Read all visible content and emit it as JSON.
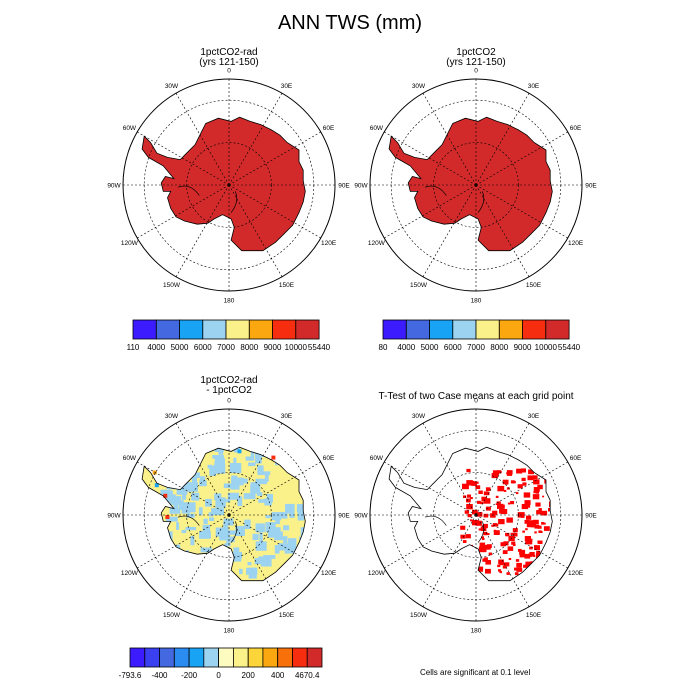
{
  "title": "ANN TWS (mm)",
  "panels": [
    {
      "title_line1": "1pctCO2-rad",
      "title_line2": "(yrs 121-150)",
      "fill": "field-red"
    },
    {
      "title_line1": "1pctCO2",
      "title_line2": "(yrs 121-150)",
      "fill": "field-red"
    },
    {
      "title_line1": "1pctCO2-rad",
      "title_line2": "- 1pctCO2",
      "fill": "diff"
    },
    {
      "title_line1": "T-Test of two Case means at each grid point",
      "title_line2": "",
      "fill": "ttest"
    }
  ],
  "longitude_labels": [
    "0",
    "30E",
    "60E",
    "90E",
    "120E",
    "150E",
    "180",
    "150W",
    "120W",
    "90W",
    "60W",
    "30W"
  ],
  "colorbars": [
    {
      "labels": [
        "110",
        "4000",
        "5000",
        "6000",
        "7000",
        "8000",
        "9000",
        "10000",
        "55440"
      ],
      "colors": [
        "#3c1cff",
        "#4468e0",
        "#19a3f5",
        "#9cd3f0",
        "#fbf18a",
        "#fba70f",
        "#f72d10",
        "#d22a2a"
      ]
    },
    {
      "labels": [
        "80",
        "4000",
        "5000",
        "6000",
        "7000",
        "8000",
        "9000",
        "10000",
        "55440"
      ],
      "colors": [
        "#3c1cff",
        "#4468e0",
        "#19a3f5",
        "#9cd3f0",
        "#fbf18a",
        "#fba70f",
        "#f72d10",
        "#d22a2a"
      ]
    },
    {
      "labels": [
        "-793.6",
        "-400",
        "-200",
        "0",
        "200",
        "400",
        "4670.4"
      ],
      "label_positions": [
        0,
        2,
        4,
        6,
        8,
        10,
        12
      ],
      "colors": [
        "#3c1cff",
        "#3a3ff0",
        "#4468e0",
        "#2a8cf0",
        "#19a3f5",
        "#9cd3f0",
        "#fdfbc0",
        "#fbf18a",
        "#fcd53a",
        "#fba70f",
        "#f8700a",
        "#f72d10",
        "#d22a2a"
      ]
    }
  ],
  "footnote": "Cells are significant at 0.1 level",
  "chart_data": {
    "type": "heatmap",
    "title": "ANN TWS (mm)",
    "projection": "south polar stereographic",
    "maps": [
      {
        "name": "1pctCO2-rad (yrs 121-150)",
        "levels": [
          110,
          4000,
          5000,
          6000,
          7000,
          8000,
          9000,
          10000,
          55440
        ],
        "dominant_range": "10000-55440"
      },
      {
        "name": "1pctCO2 (yrs 121-150)",
        "levels": [
          80,
          4000,
          5000,
          6000,
          7000,
          8000,
          9000,
          10000,
          55440
        ],
        "dominant_range": "10000-55440"
      },
      {
        "name": "1pctCO2-rad - 1pctCO2",
        "levels": [
          -793.6,
          -400,
          -200,
          0,
          200,
          400,
          4670.4
        ],
        "dominant_range": "0-200"
      },
      {
        "name": "T-Test of two Case means at each grid point",
        "significance_level": 0.1
      }
    ]
  }
}
